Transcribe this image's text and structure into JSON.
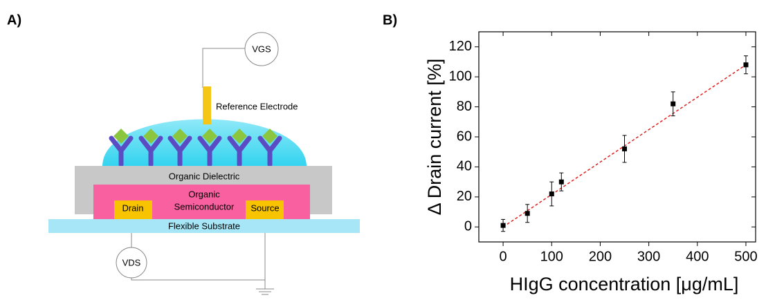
{
  "panels": [
    "A)",
    "B)"
  ],
  "diagram": {
    "vgs": "VGS",
    "reference_electrode": "Reference Electrode",
    "dielectric": "Organic Dielectric",
    "semiconductor": [
      "Organic",
      "Semiconductor"
    ],
    "drain": "Drain",
    "source": "Source",
    "substrate": "Flexible Substrate",
    "vds": "VDS"
  },
  "chart_data": {
    "type": "scatter",
    "xlabel": "HIgG concentration [μg/mL]",
    "ylabel": "Δ Drain current [%]",
    "x": [
      0,
      50,
      100,
      120,
      250,
      350,
      500
    ],
    "values": [
      1,
      9,
      22,
      30,
      52,
      82,
      108
    ],
    "errors": [
      4,
      6,
      8,
      6,
      9,
      8,
      6
    ],
    "color": "#000000",
    "fit": {
      "x": [
        0,
        500
      ],
      "values": [
        0,
        108
      ],
      "color": "#e02020"
    },
    "xlim": [
      -50,
      520
    ],
    "ylim": [
      -10,
      130
    ],
    "xticks": [
      0,
      100,
      200,
      300,
      400,
      500
    ],
    "yticks": [
      0,
      20,
      40,
      60,
      80,
      100,
      120
    ]
  }
}
